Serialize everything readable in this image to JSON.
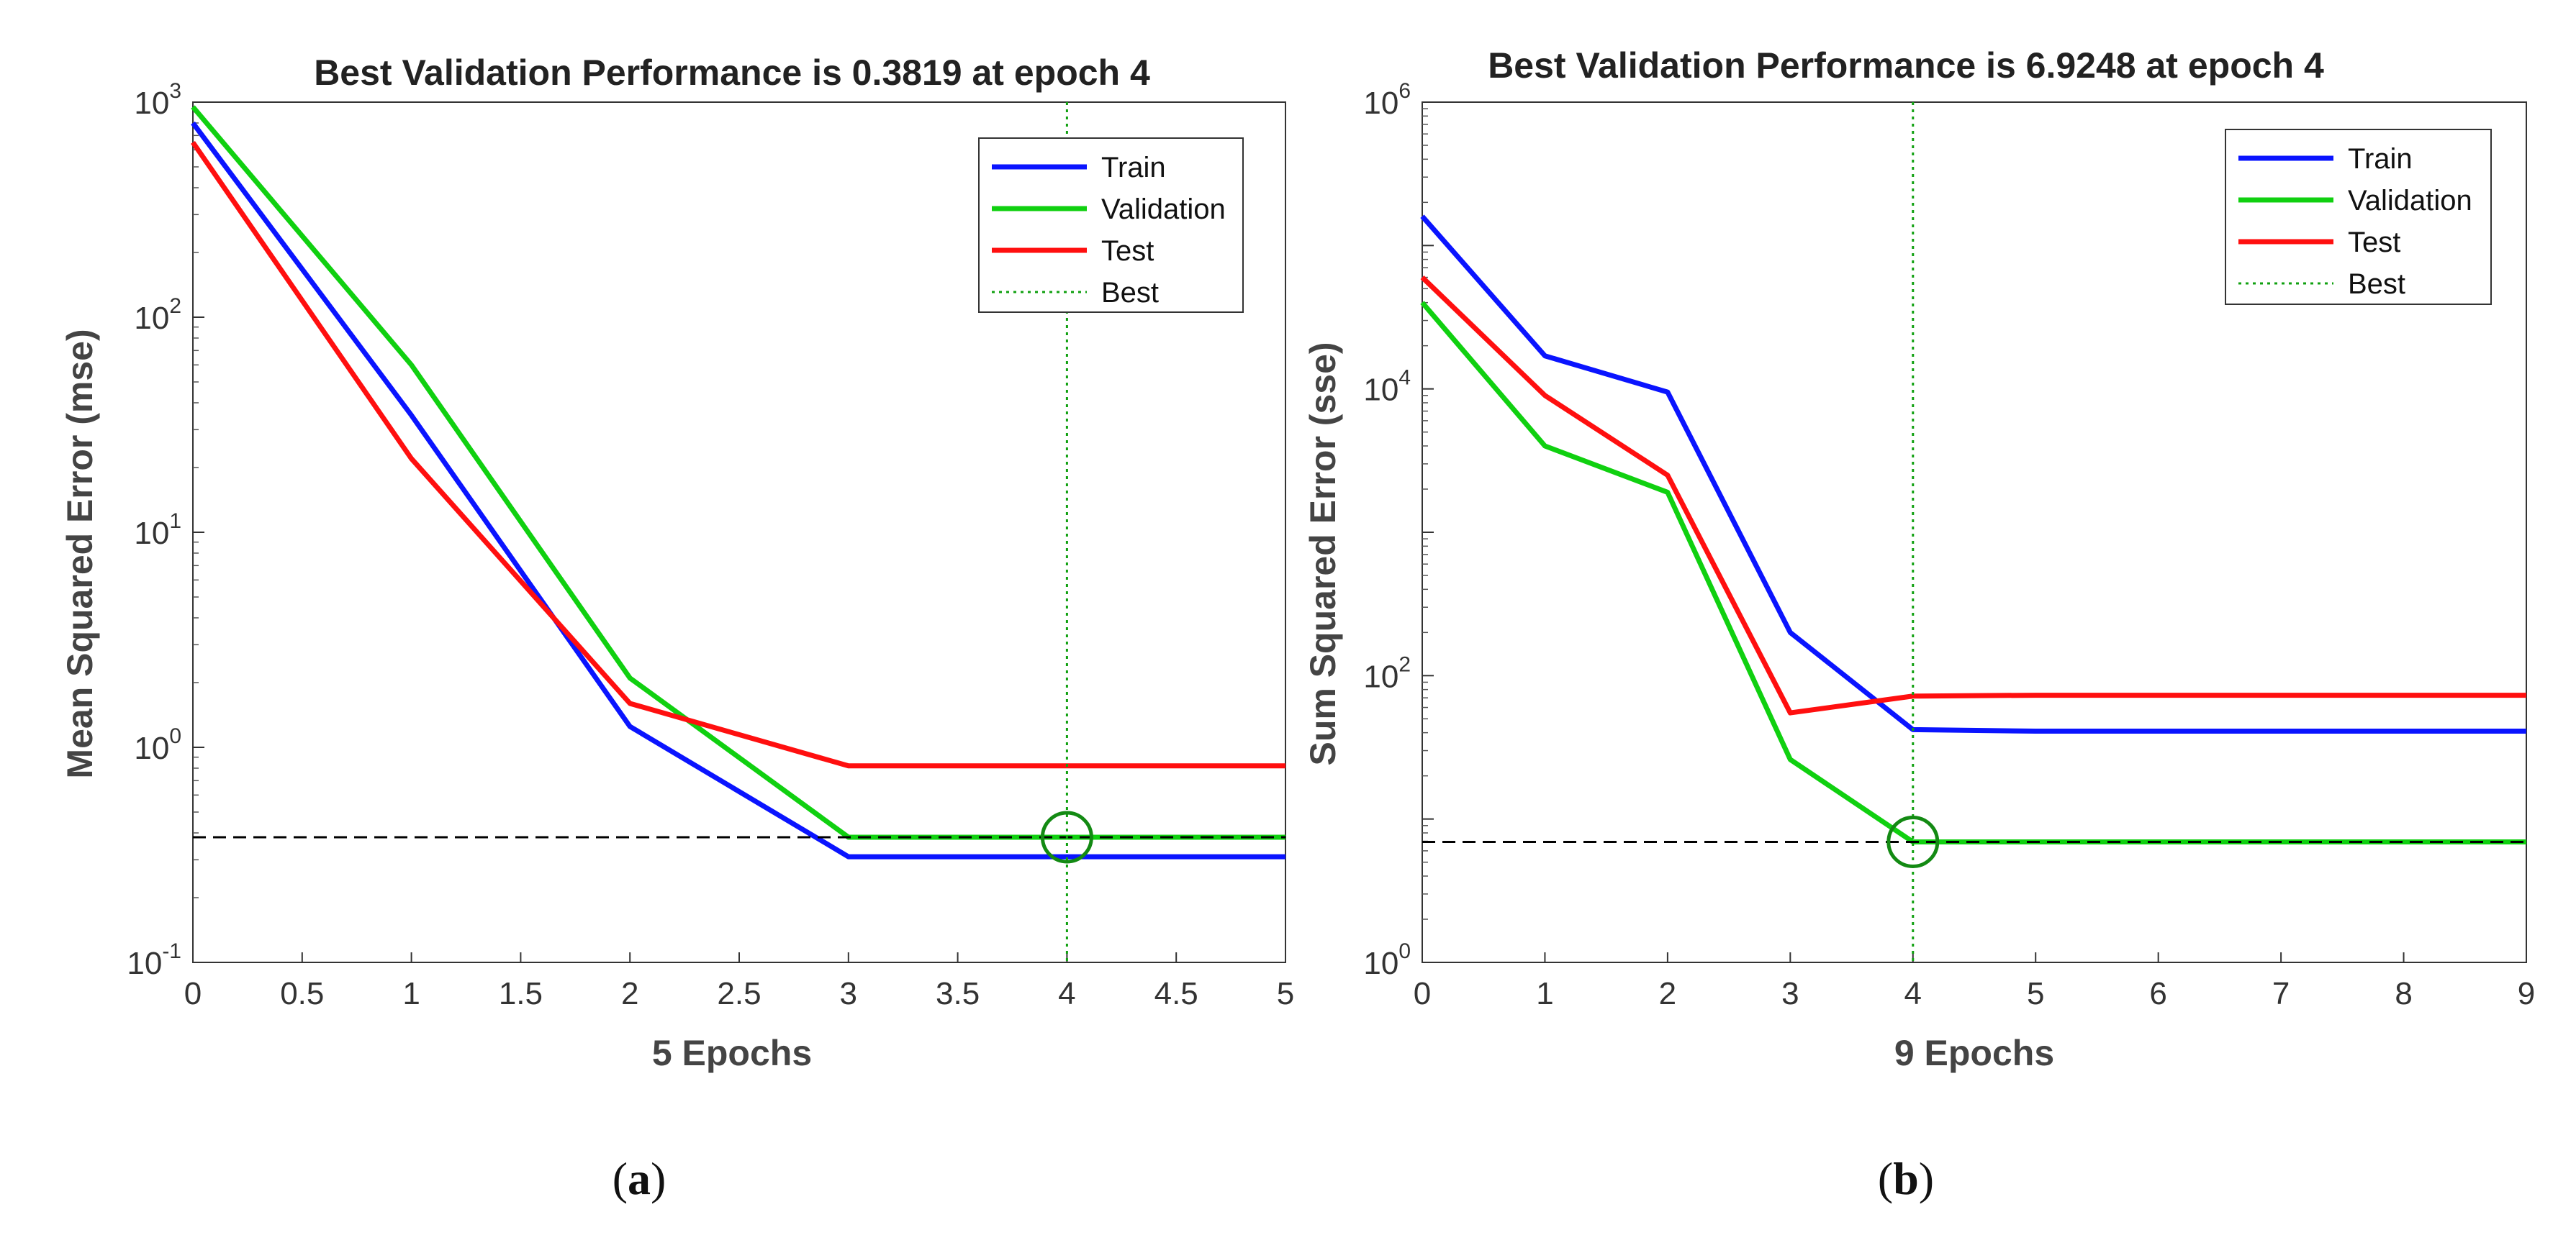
{
  "chart_data": [
    {
      "id": "a",
      "type": "line",
      "title": "Best Validation Performance is 0.3819 at epoch 4",
      "xlabel": "5 Epochs",
      "ylabel": "Mean Squared Error  (mse)",
      "xlim": [
        0,
        5
      ],
      "ylim_log10": [
        -1,
        3
      ],
      "yscale": "log",
      "x_ticks": [
        0,
        0.5,
        1,
        1.5,
        2,
        2.5,
        3,
        3.5,
        4,
        4.5,
        5
      ],
      "x_tick_labels": [
        "0",
        "0.5",
        "1",
        "1.5",
        "2",
        "2.5",
        "3",
        "3.5",
        "4",
        "4.5",
        "5"
      ],
      "y_tick_exponents": [
        -1,
        0,
        1,
        2,
        3
      ],
      "y_tick_base": "10",
      "y_tick_exp_labels": [
        "-1",
        "0",
        "1",
        "2",
        "3"
      ],
      "x": [
        0,
        1,
        2,
        3,
        4,
        5
      ],
      "series": [
        {
          "name": "Train",
          "color": "#0a14ff",
          "values": [
            800,
            35,
            1.25,
            0.31,
            0.31,
            0.31
          ]
        },
        {
          "name": "Validation",
          "color": "#10d010",
          "values": [
            950,
            60,
            2.1,
            0.3819,
            0.3819,
            0.3819
          ]
        },
        {
          "name": "Test",
          "color": "#ff0f0f",
          "values": [
            650,
            22,
            1.6,
            0.82,
            0.82,
            0.82
          ]
        }
      ],
      "best": {
        "name": "Best",
        "epoch": 4,
        "value": 0.3819,
        "color": "#10a010"
      },
      "goal_line": 0.3819,
      "caption": {
        "open": "(",
        "letter": "a",
        "close": ")"
      }
    },
    {
      "id": "b",
      "type": "line",
      "title": "Best Validation Performance is 6.9248 at epoch 4",
      "xlabel": "9 Epochs",
      "ylabel": "Sum Squared Error  (sse)",
      "xlim": [
        0,
        9
      ],
      "ylim_log10": [
        0,
        6
      ],
      "yscale": "log",
      "x_ticks": [
        0,
        1,
        2,
        3,
        4,
        5,
        6,
        7,
        8,
        9
      ],
      "x_tick_labels": [
        "0",
        "1",
        "2",
        "3",
        "4",
        "5",
        "6",
        "7",
        "8",
        "9"
      ],
      "y_tick_exponents": [
        0,
        2,
        4,
        6
      ],
      "y_tick_base": "10",
      "y_tick_exp_labels": [
        "0",
        "2",
        "4",
        "6"
      ],
      "x": [
        0,
        1,
        2,
        3,
        4,
        5,
        6,
        7,
        8,
        9
      ],
      "series": [
        {
          "name": "Train",
          "color": "#0a14ff",
          "values": [
            160000,
            17000,
            9500,
            200,
            42,
            41,
            41,
            41,
            41,
            41
          ]
        },
        {
          "name": "Validation",
          "color": "#10d010",
          "values": [
            40000,
            4000,
            1900,
            26,
            6.9248,
            6.9248,
            6.9248,
            6.9248,
            6.9248,
            6.9248
          ]
        },
        {
          "name": "Test",
          "color": "#ff0f0f",
          "values": [
            60000,
            9000,
            2500,
            55,
            72,
            73,
            73,
            73,
            73,
            73
          ]
        }
      ],
      "best": {
        "name": "Best",
        "epoch": 4,
        "value": 6.9248,
        "color": "#10a010"
      },
      "goal_line": 6.9248,
      "caption": {
        "open": "(",
        "letter": "b",
        "close": ")"
      }
    }
  ]
}
